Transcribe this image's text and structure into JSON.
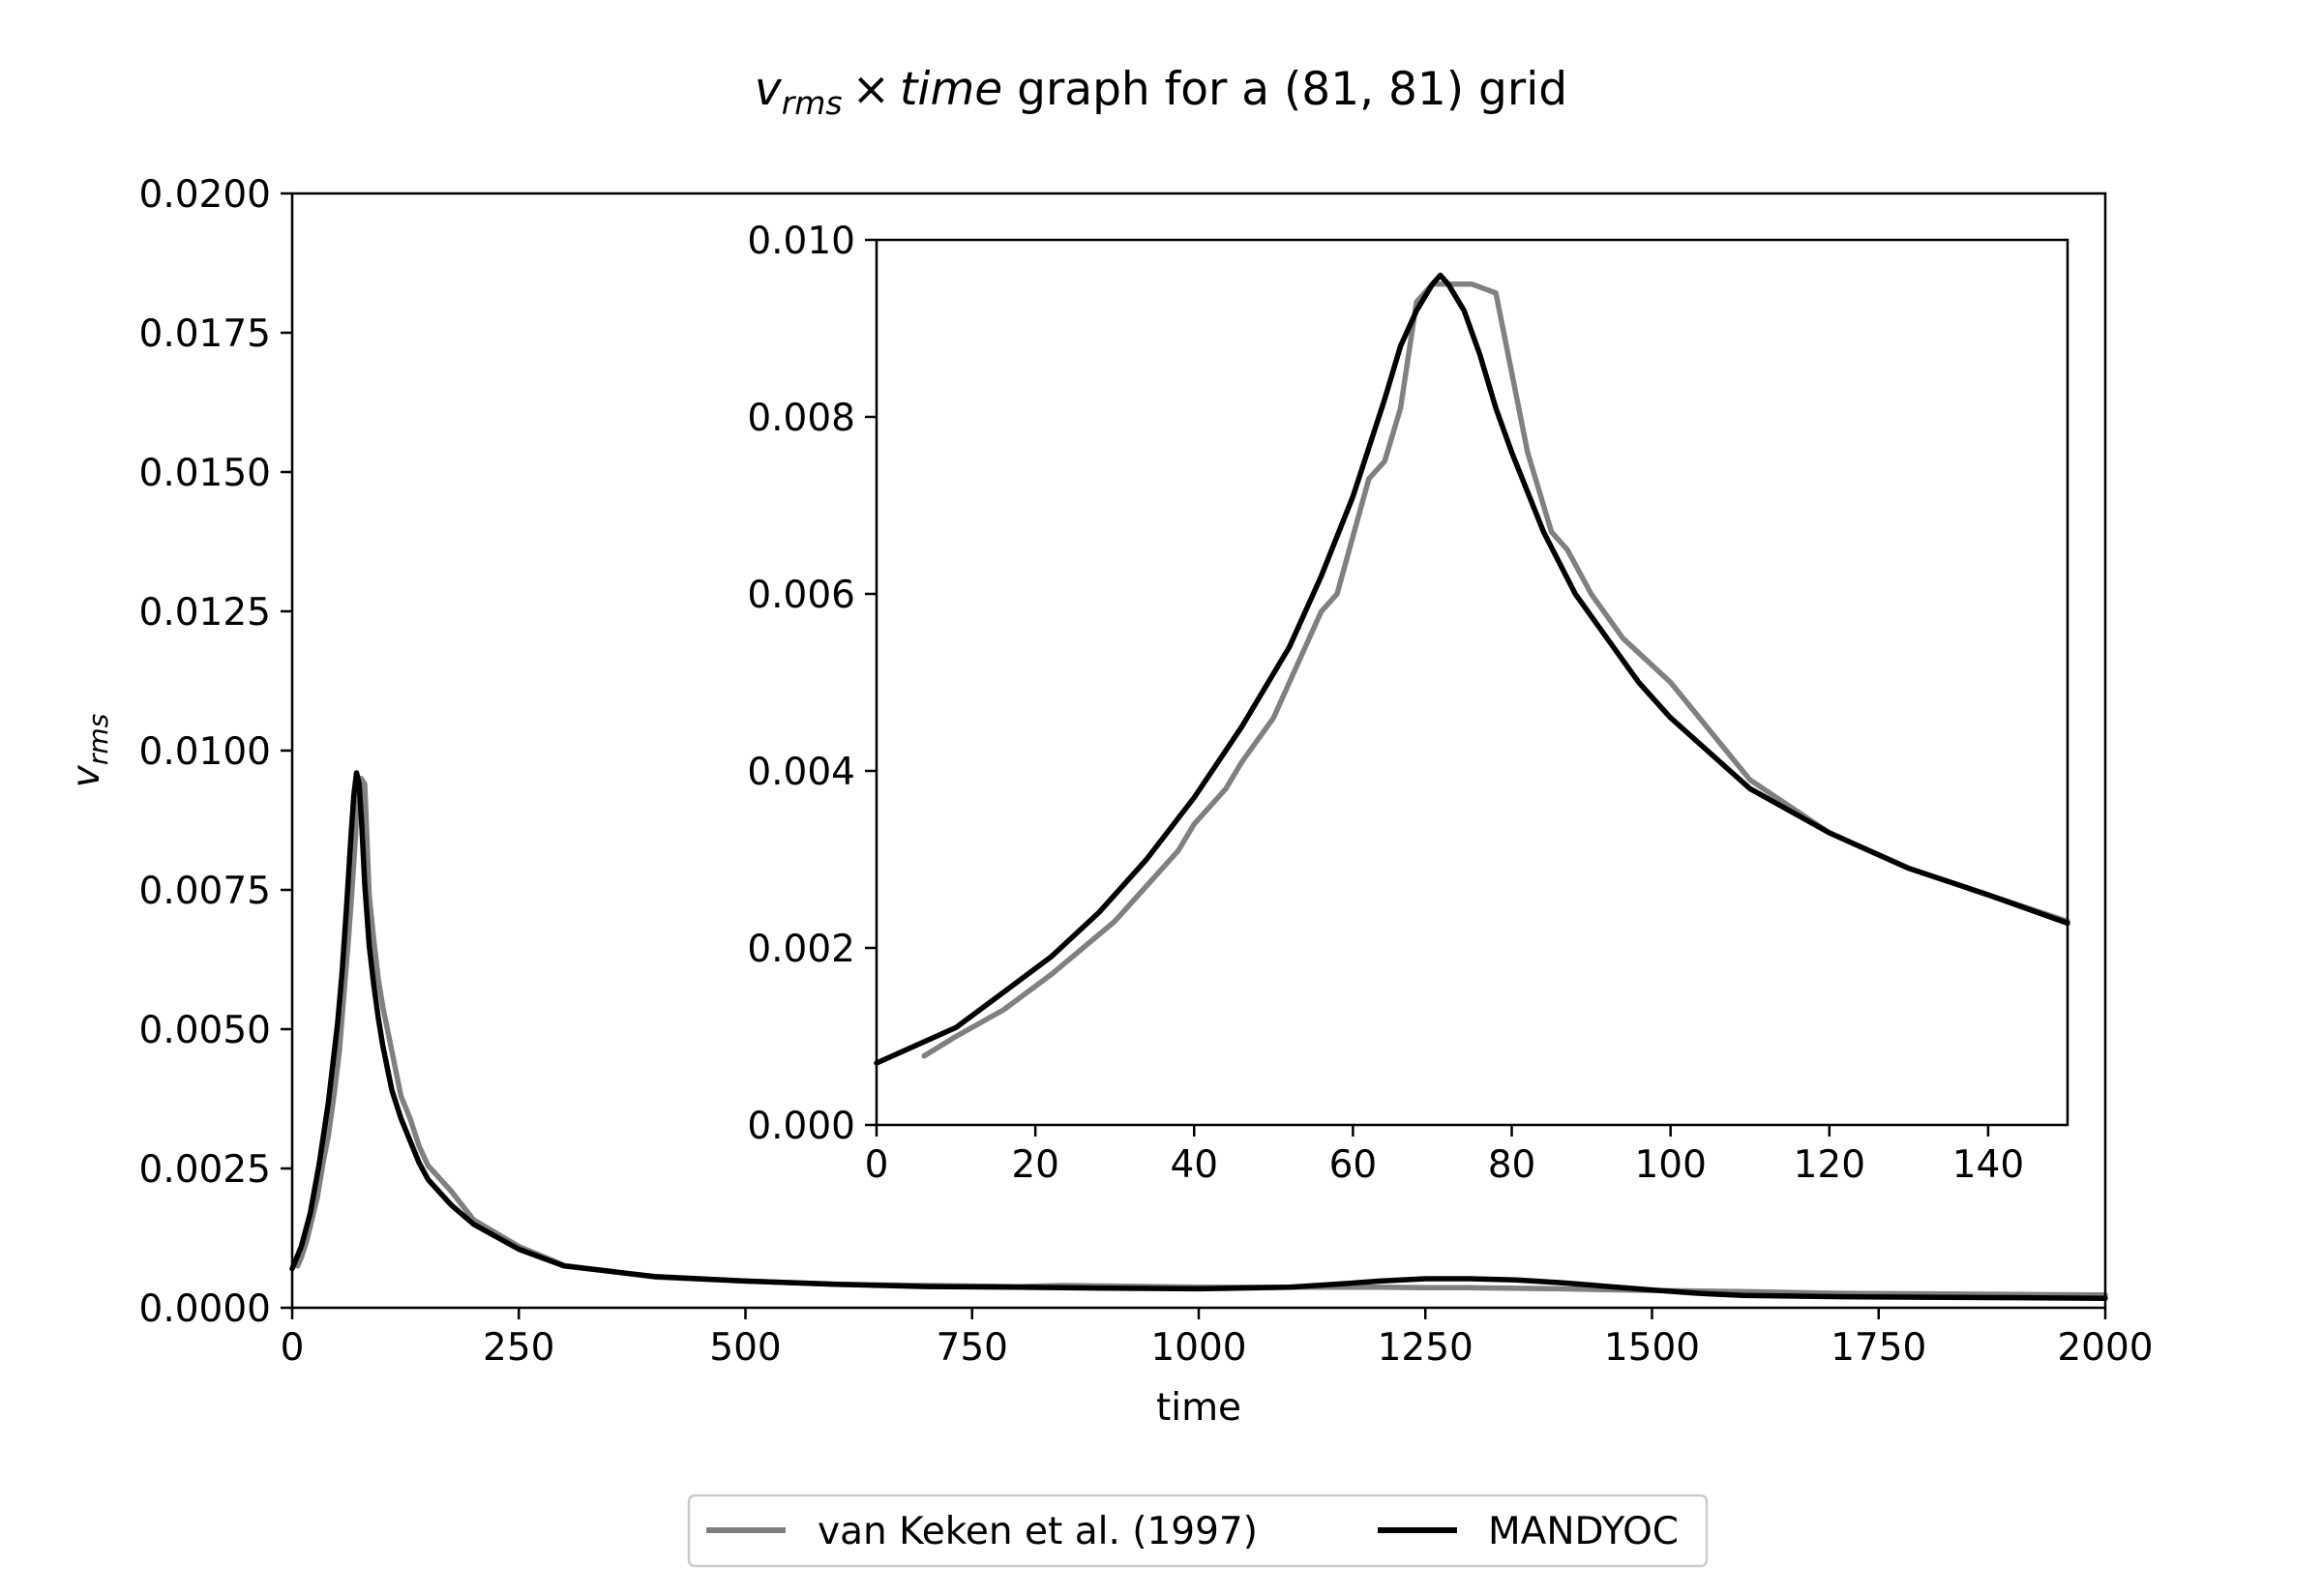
{
  "figure": {
    "title_parts": {
      "v": "v",
      "sub": "rms",
      "times": "×",
      "time": "time",
      "rest": " graph for a (81, 81) grid"
    }
  },
  "chart_data": [
    {
      "type": "line",
      "panel": "main",
      "xlabel": "time",
      "ylabel": {
        "v": "v",
        "sub": "rms"
      },
      "xlim": [
        0,
        2000
      ],
      "ylim": [
        0,
        0.02
      ],
      "xticks": [
        0,
        250,
        500,
        750,
        1000,
        1250,
        1500,
        1750,
        2000
      ],
      "xtick_labels": [
        "0",
        "250",
        "500",
        "750",
        "1000",
        "1250",
        "1500",
        "1750",
        "2000"
      ],
      "yticks": [
        0,
        0.0025,
        0.005,
        0.0075,
        0.01,
        0.0125,
        0.015,
        0.0175,
        0.02
      ],
      "ytick_labels": [
        "0.0000",
        "0.0025",
        "0.0050",
        "0.0075",
        "0.0100",
        "0.0125",
        "0.0150",
        "0.0175",
        "0.0200"
      ],
      "grid": false,
      "series": [
        {
          "name": "van Keken et al. (1997)",
          "color": "#808080",
          "x": [
            6,
            10,
            16,
            22,
            28,
            34,
            40,
            46,
            52,
            58,
            62,
            66,
            70,
            72,
            76,
            80,
            85,
            90,
            95,
            100,
            110,
            120,
            130,
            140,
            150,
            175,
            200,
            250,
            300,
            400,
            500,
            600,
            700,
            800,
            850,
            900,
            1000,
            1100,
            1200,
            1250,
            1300,
            1400,
            1500,
            1600,
            1700,
            1800,
            1900,
            2000
          ],
          "y": [
            0.00075,
            0.0009,
            0.0012,
            0.0016,
            0.002,
            0.0026,
            0.0031,
            0.0038,
            0.0046,
            0.0058,
            0.0066,
            0.0075,
            0.0085,
            0.0095,
            0.0095,
            0.0094,
            0.0074,
            0.0066,
            0.0059,
            0.0054,
            0.0046,
            0.0038,
            0.0034,
            0.0029,
            0.00255,
            0.0021,
            0.00158,
            0.0011,
            0.00076,
            0.00055,
            0.00048,
            0.00042,
            0.0004,
            0.00038,
            0.0004,
            0.00039,
            0.00037,
            0.00037,
            0.00037,
            0.00036,
            0.00036,
            0.00034,
            0.00031,
            0.00029,
            0.00026,
            0.00025,
            0.00024,
            0.00023
          ]
        },
        {
          "name": "MANDYOC",
          "color": "#000000",
          "x": [
            0,
            10,
            20,
            30,
            40,
            50,
            55,
            60,
            65,
            68,
            71,
            74,
            77,
            80,
            85,
            90,
            95,
            100,
            110,
            120,
            130,
            140,
            150,
            175,
            200,
            250,
            300,
            400,
            500,
            600,
            700,
            800,
            900,
            1000,
            1100,
            1150,
            1200,
            1250,
            1300,
            1350,
            1400,
            1500,
            1550,
            1600,
            1700,
            1800,
            1900,
            2000
          ],
          "y": [
            0.0007,
            0.0011,
            0.0017,
            0.0026,
            0.0037,
            0.0051,
            0.006,
            0.0072,
            0.0085,
            0.0092,
            0.0096,
            0.0094,
            0.0086,
            0.0076,
            0.0065,
            0.0058,
            0.0052,
            0.0047,
            0.0039,
            0.0034,
            0.003,
            0.0026,
            0.0023,
            0.00185,
            0.0015,
            0.00105,
            0.00075,
            0.00056,
            0.00048,
            0.00042,
            0.00038,
            0.00037,
            0.00035,
            0.00034,
            0.00037,
            0.00042,
            0.00048,
            0.00052,
            0.00052,
            0.0005,
            0.00045,
            0.00032,
            0.00026,
            0.00022,
            0.0002,
            0.00019,
            0.00018,
            0.00017
          ]
        }
      ]
    },
    {
      "type": "line",
      "panel": "inset",
      "xlim": [
        0,
        150
      ],
      "ylim": [
        0,
        0.01
      ],
      "xticks": [
        0,
        20,
        40,
        60,
        80,
        100,
        120,
        140
      ],
      "xtick_labels": [
        "0",
        "20",
        "40",
        "60",
        "80",
        "100",
        "120",
        "140"
      ],
      "yticks": [
        0,
        0.002,
        0.004,
        0.006,
        0.008,
        0.01
      ],
      "ytick_labels": [
        "0.000",
        "0.002",
        "0.004",
        "0.006",
        "0.008",
        "0.010"
      ],
      "grid": false,
      "series": [
        {
          "name": "van Keken et al. (1997)",
          "color": "#808080",
          "x": [
            6,
            10,
            16,
            22,
            26,
            30,
            34,
            38,
            40,
            44,
            46,
            50,
            52,
            56,
            58,
            62,
            64,
            66,
            68,
            70,
            72,
            75,
            78,
            82,
            85,
            87,
            90,
            94,
            100,
            110,
            120,
            130,
            140,
            150
          ],
          "y": [
            0.00078,
            0.001,
            0.0013,
            0.0017,
            0.002,
            0.0023,
            0.0027,
            0.0031,
            0.0034,
            0.0038,
            0.0041,
            0.0046,
            0.005,
            0.0058,
            0.006,
            0.0073,
            0.0075,
            0.0081,
            0.0093,
            0.0095,
            0.0095,
            0.0095,
            0.0094,
            0.0076,
            0.0067,
            0.0065,
            0.006,
            0.0055,
            0.005,
            0.0039,
            0.0033,
            0.0029,
            0.0026,
            0.0023
          ]
        },
        {
          "name": "MANDYOC",
          "color": "#000000",
          "x": [
            0,
            10,
            16,
            22,
            28,
            34,
            40,
            46,
            52,
            56,
            60,
            64,
            66,
            68,
            70,
            71,
            72,
            74,
            76,
            78,
            80,
            84,
            88,
            92,
            96,
            100,
            110,
            120,
            130,
            140,
            150
          ],
          "y": [
            0.0007,
            0.0011,
            0.0015,
            0.0019,
            0.0024,
            0.003,
            0.0037,
            0.0045,
            0.0054,
            0.0062,
            0.0071,
            0.0082,
            0.0088,
            0.0092,
            0.0095,
            0.0096,
            0.0095,
            0.0092,
            0.0087,
            0.0081,
            0.0076,
            0.0067,
            0.006,
            0.0055,
            0.005,
            0.0046,
            0.0038,
            0.0033,
            0.0029,
            0.0026,
            0.00228
          ]
        }
      ]
    }
  ],
  "legend": {
    "placement": "bottom-center",
    "entries": [
      {
        "label": "van Keken et al. (1997)",
        "color": "#808080"
      },
      {
        "label": "MANDYOC",
        "color": "#000000"
      }
    ]
  }
}
